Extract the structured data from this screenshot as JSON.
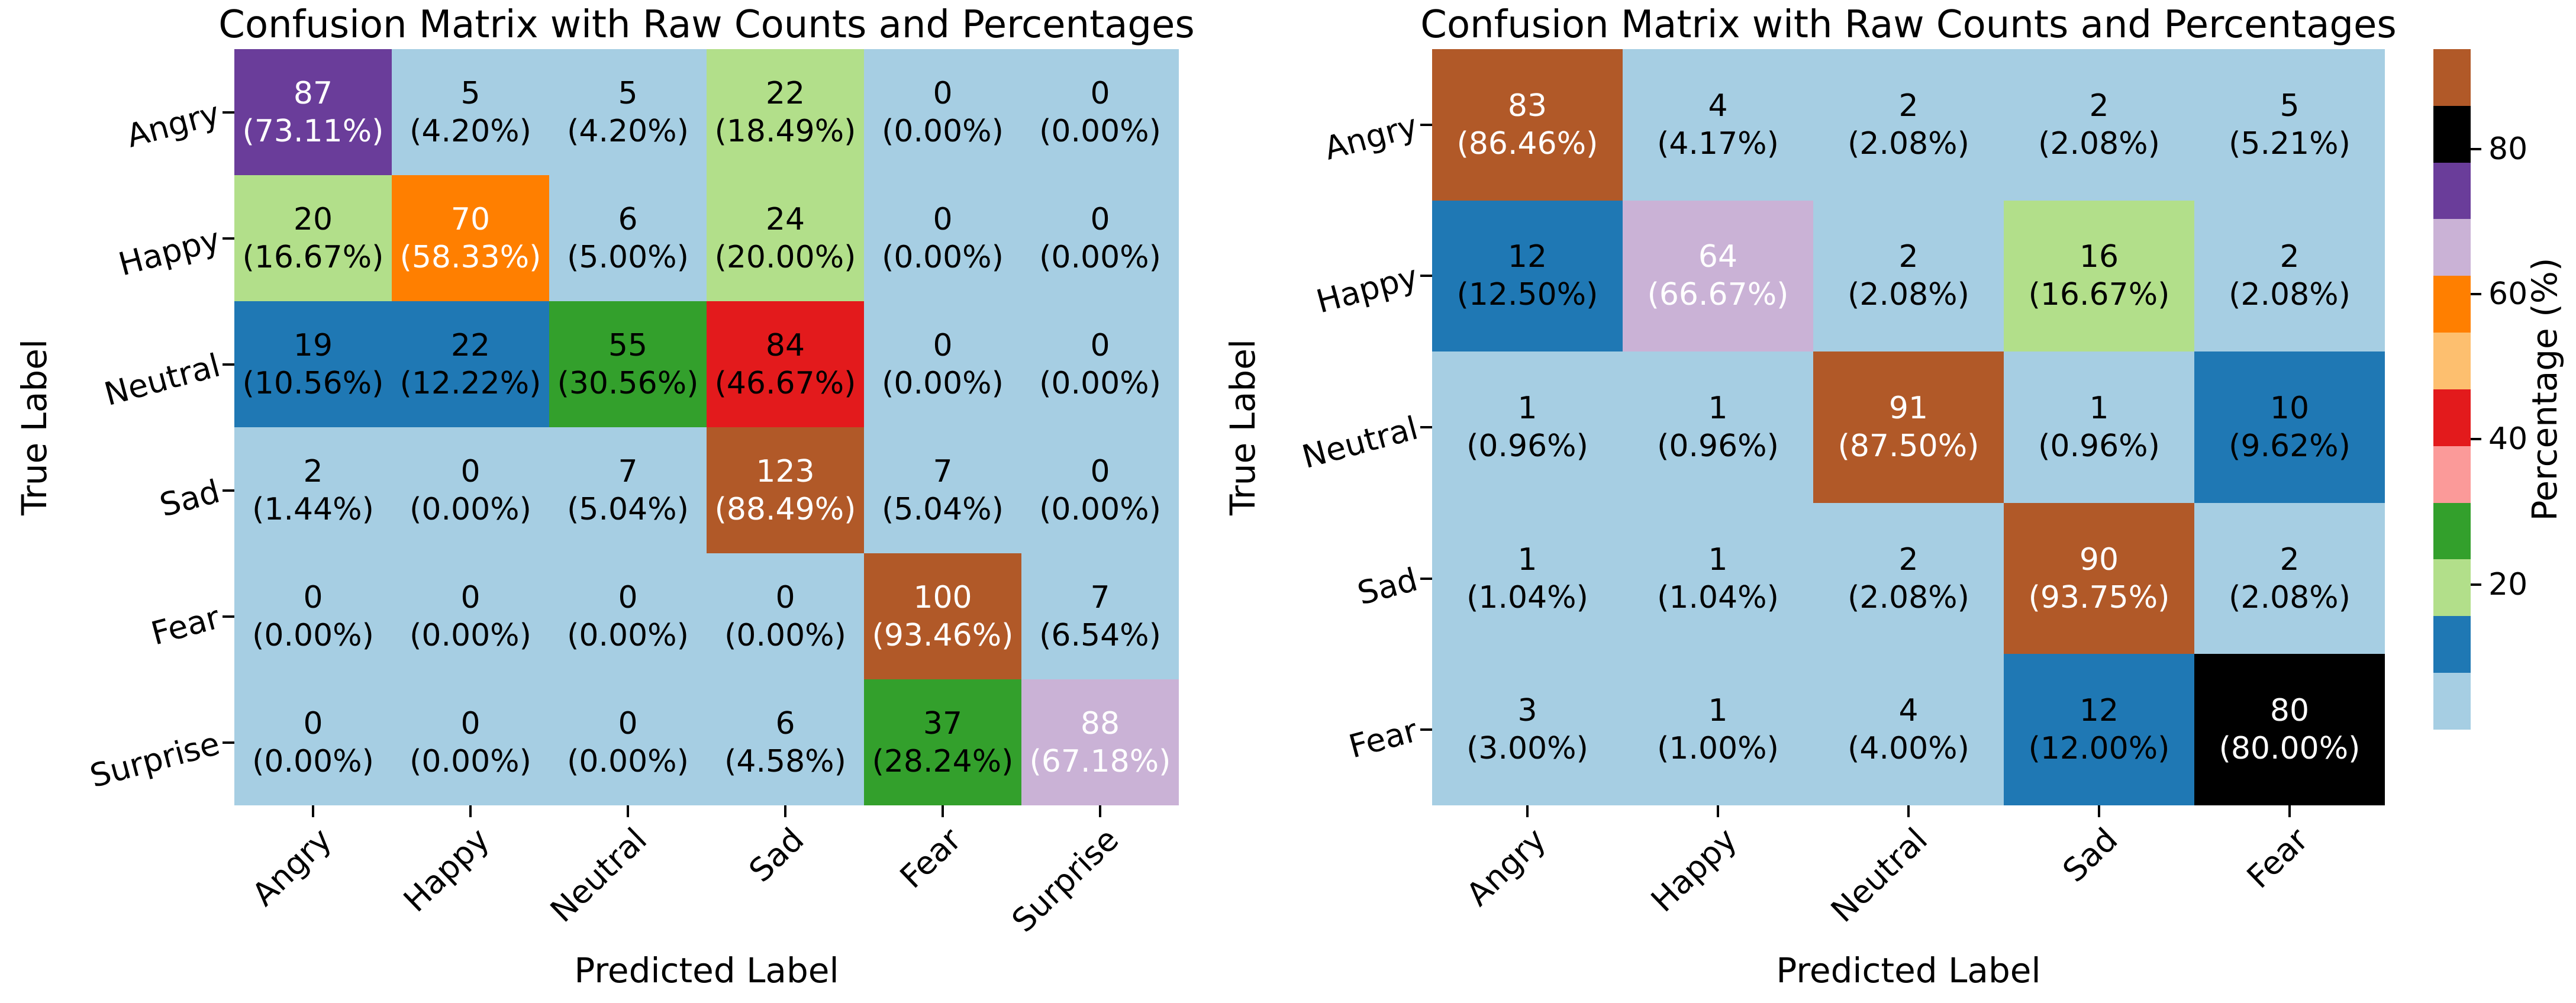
{
  "colors": {
    "background": "#ffffff",
    "palette": [
      "#a6cee3",
      "#1f78b4",
      "#b2df8a",
      "#33a02c",
      "#fb9a99",
      "#e31a1c",
      "#fdbf6f",
      "#ff7f00",
      "#cab2d6",
      "#6a3d9a",
      "#000000",
      "#b15928"
    ],
    "cell_text_dark": "#000000",
    "cell_text_light": "#ffffff",
    "white_text_threshold_pct": 50
  },
  "colorbar": {
    "label": "Percentage (%)",
    "ticks": [
      20,
      40,
      60,
      80
    ],
    "vmin": 0,
    "vmax": 93.75,
    "segment_colors_bottom_to_top": [
      "#a6cee3",
      "#1f78b4",
      "#b2df8a",
      "#33a02c",
      "#fb9a99",
      "#e31a1c",
      "#fdbf6f",
      "#ff7f00",
      "#cab2d6",
      "#6a3d9a",
      "#000000",
      "#b15928"
    ]
  },
  "chart_data": [
    {
      "type": "heatmap",
      "title": "Confusion Matrix with Raw Counts and Percentages",
      "xlabel": "Predicted Label",
      "ylabel": "True Label",
      "x_ticklabels": [
        "Angry",
        "Happy",
        "Neutral",
        "Sad",
        "Fear",
        "Surprise"
      ],
      "y_ticklabels": [
        "Angry",
        "Happy",
        "Neutral",
        "Sad",
        "Fear",
        "Surprise"
      ],
      "counts": [
        [
          87,
          5,
          5,
          22,
          0,
          0
        ],
        [
          20,
          70,
          6,
          24,
          0,
          0
        ],
        [
          19,
          22,
          55,
          84,
          0,
          0
        ],
        [
          2,
          0,
          7,
          123,
          7,
          0
        ],
        [
          0,
          0,
          0,
          0,
          100,
          7
        ],
        [
          0,
          0,
          0,
          6,
          37,
          88
        ]
      ],
      "percentages": [
        [
          73.11,
          4.2,
          4.2,
          18.49,
          0.0,
          0.0
        ],
        [
          16.67,
          58.33,
          5.0,
          20.0,
          0.0,
          0.0
        ],
        [
          10.56,
          12.22,
          30.56,
          46.67,
          0.0,
          0.0
        ],
        [
          1.44,
          0.0,
          5.04,
          88.49,
          5.04,
          0.0
        ],
        [
          0.0,
          0.0,
          0.0,
          0.0,
          93.46,
          6.54
        ],
        [
          0.0,
          0.0,
          0.0,
          4.58,
          28.24,
          67.18
        ]
      ]
    },
    {
      "type": "heatmap",
      "title": "Confusion Matrix with Raw Counts and Percentages",
      "xlabel": "Predicted Label",
      "ylabel": "True Label",
      "x_ticklabels": [
        "Angry",
        "Happy",
        "Neutral",
        "Sad",
        "Fear"
      ],
      "y_ticklabels": [
        "Angry",
        "Happy",
        "Neutral",
        "Sad",
        "Fear"
      ],
      "counts": [
        [
          83,
          4,
          2,
          2,
          5
        ],
        [
          12,
          64,
          2,
          16,
          2
        ],
        [
          1,
          1,
          91,
          1,
          10
        ],
        [
          1,
          1,
          2,
          90,
          2
        ],
        [
          3,
          1,
          4,
          12,
          80
        ]
      ],
      "percentages": [
        [
          86.46,
          4.17,
          2.08,
          2.08,
          5.21
        ],
        [
          12.5,
          66.67,
          2.08,
          16.67,
          2.08
        ],
        [
          0.96,
          0.96,
          87.5,
          0.96,
          9.62
        ],
        [
          1.04,
          1.04,
          2.08,
          93.75,
          2.08
        ],
        [
          3.0,
          1.0,
          4.0,
          12.0,
          80.0
        ]
      ]
    }
  ]
}
